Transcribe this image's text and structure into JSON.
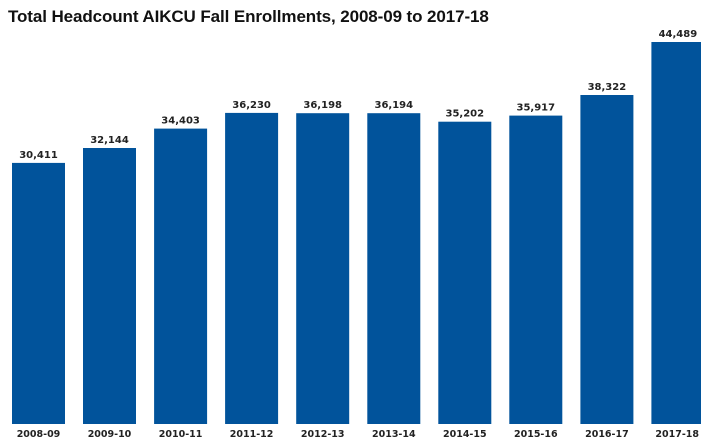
{
  "chart_data": {
    "type": "bar",
    "title": "Total Headcount AIKCU Fall Enrollments, 2008-09 to 2017-18",
    "xlabel": "",
    "ylabel": "",
    "categories": [
      "2008-09",
      "2009-10",
      "2010-11",
      "2011-12",
      "2012-13",
      "2013-14",
      "2014-15",
      "2015-16",
      "2016-17",
      "2017-18"
    ],
    "values": [
      30411,
      32144,
      34403,
      36230,
      36198,
      36194,
      35202,
      35917,
      38322,
      44489
    ],
    "data_labels": [
      "30,411",
      "32,144",
      "34,403",
      "36,230",
      "36,198",
      "36,194",
      "35,202",
      "35,917",
      "38,322",
      "44,489"
    ],
    "ylim": [
      0,
      44489
    ],
    "grid": false,
    "legend": "none",
    "bar_color": "#01539b"
  }
}
